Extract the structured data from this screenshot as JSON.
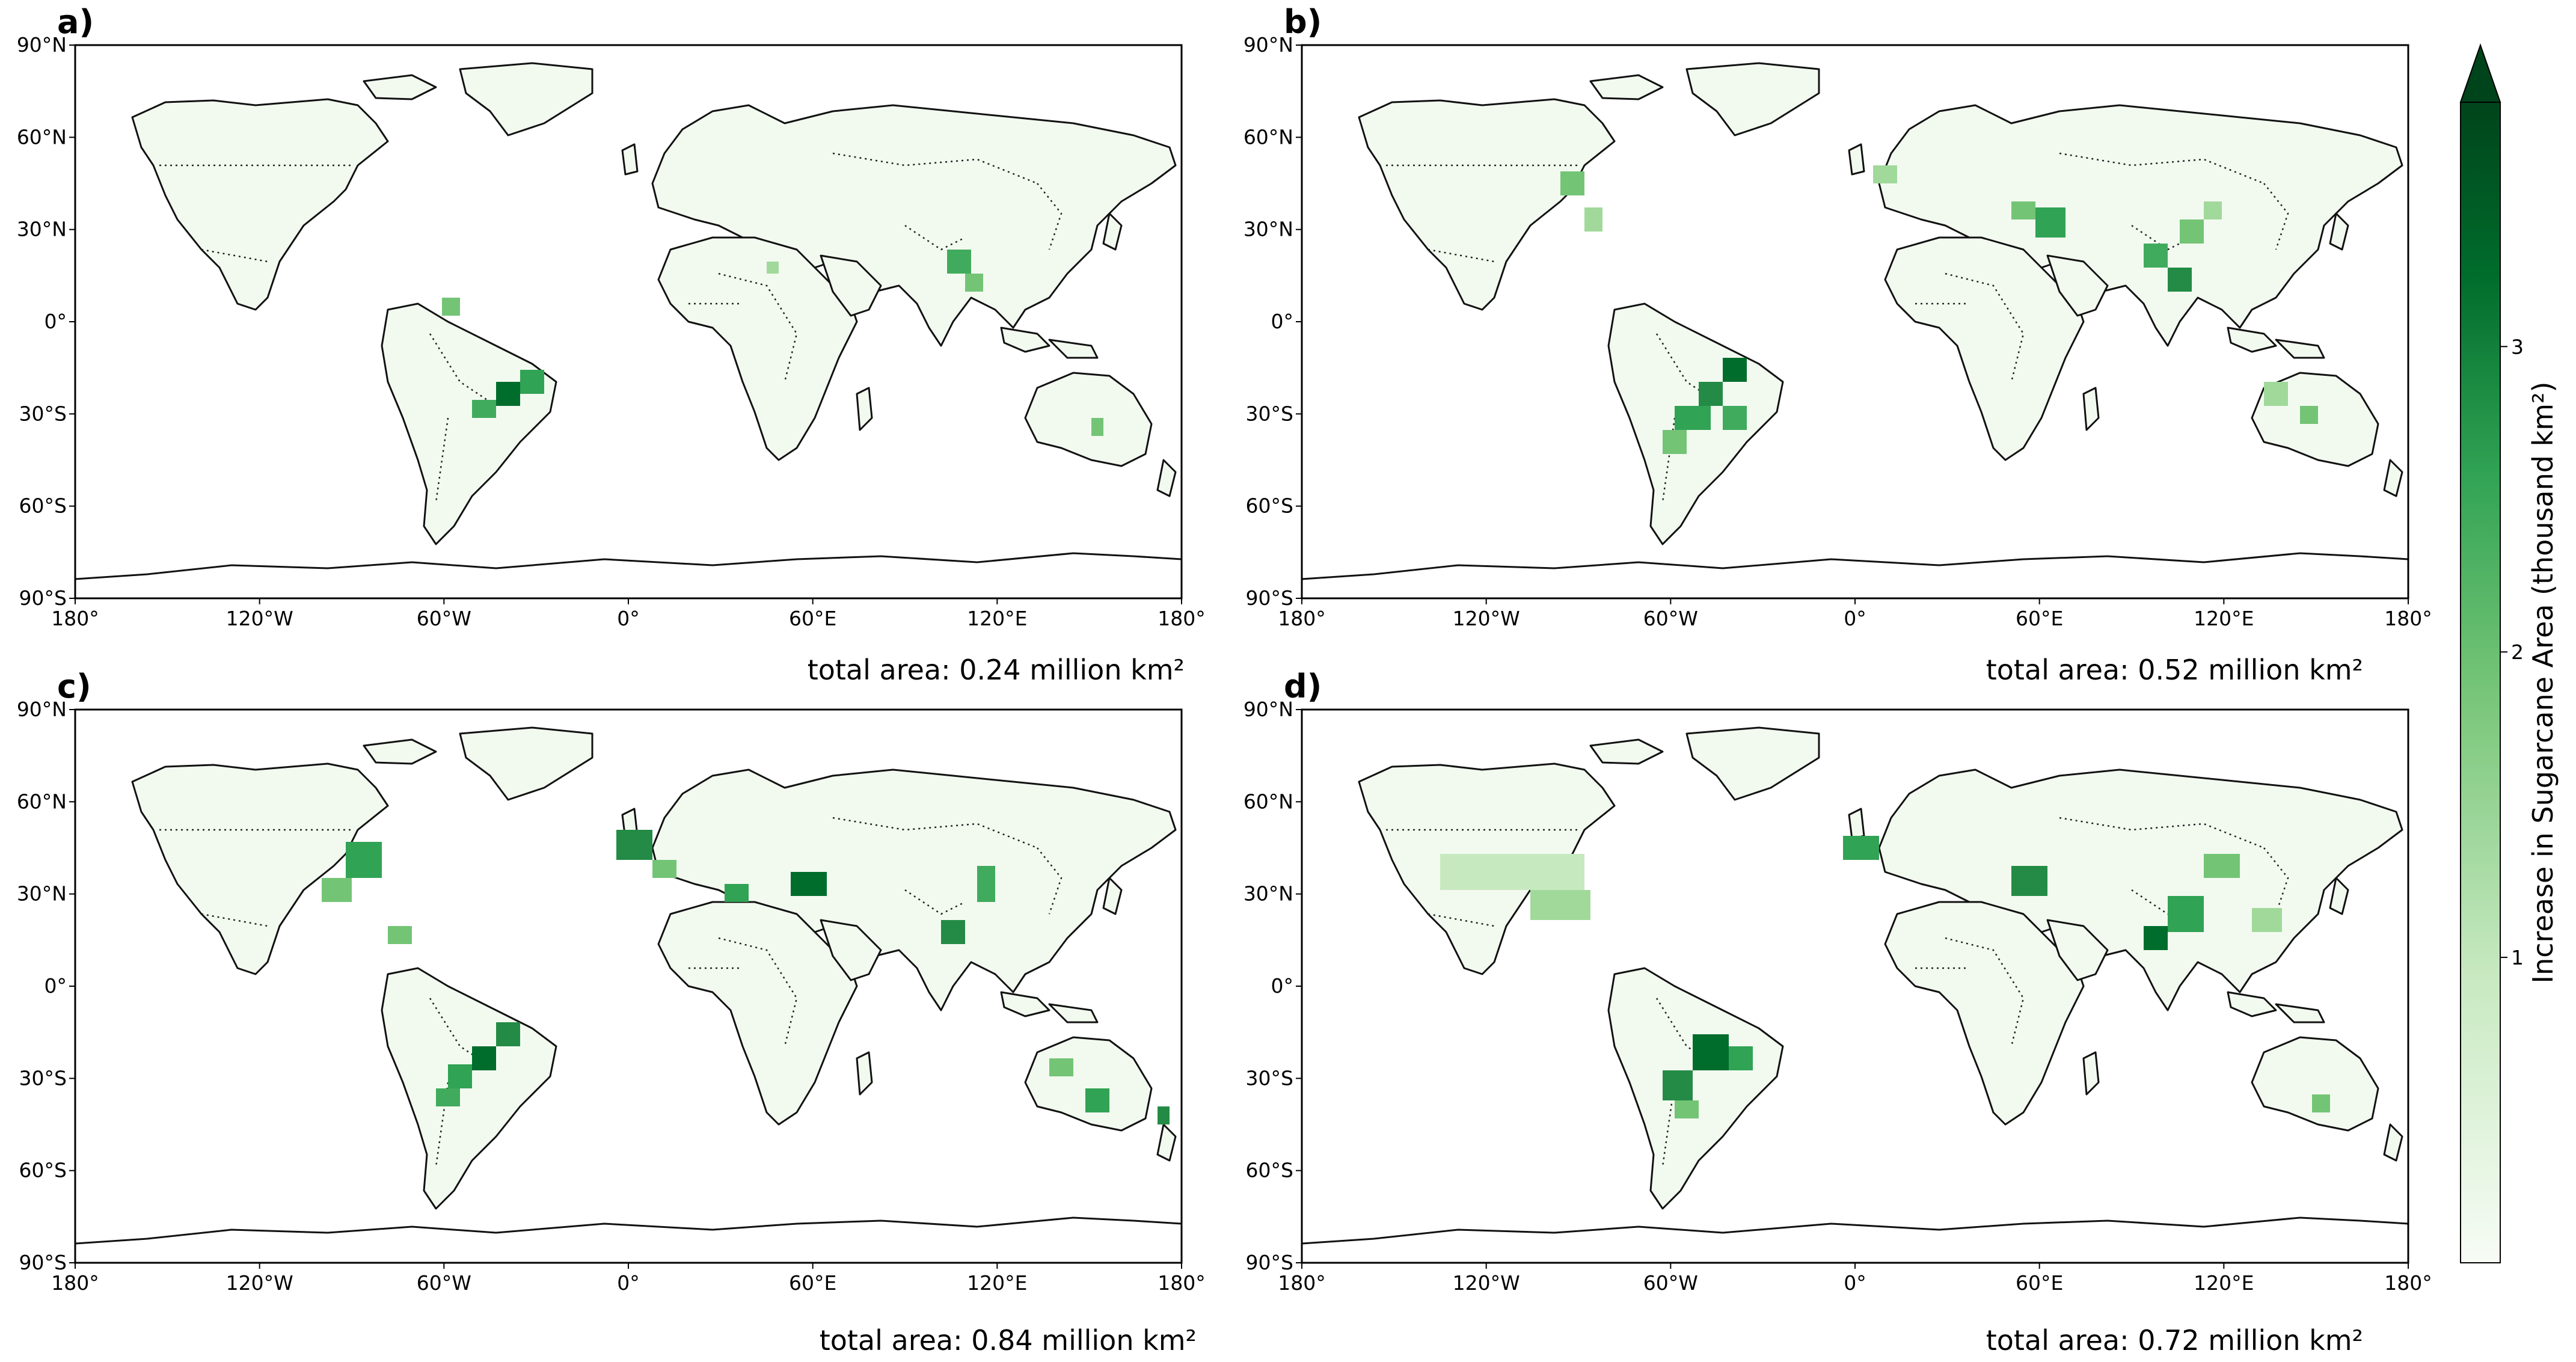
{
  "panels": [
    {
      "letter": "a)",
      "total_area": "total area: 0.24 million km²"
    },
    {
      "letter": "b)",
      "total_area": "total area: 0.52 million km²"
    },
    {
      "letter": "c)",
      "total_area": "total area: 0.84 million km²"
    },
    {
      "letter": "d)",
      "total_area": "total area: 0.72 million km²"
    }
  ],
  "axes": {
    "lat_ticks": [
      "90°N",
      "60°N",
      "30°N",
      "0°",
      "30°S",
      "60°S",
      "90°S"
    ],
    "lon_ticks": [
      "180°",
      "120°W",
      "60°W",
      "0°",
      "60°E",
      "120°E",
      "180°"
    ]
  },
  "colorbar": {
    "label": "Increase in Sugarcane Area (thousand km²)",
    "ticks": [
      "1",
      "2",
      "3"
    ],
    "tick_values": [
      1,
      2,
      3
    ],
    "range": [
      0,
      3.8
    ],
    "extend": "max",
    "colormap": [
      "#f7fcf5",
      "#c7e9c0",
      "#74c476",
      "#31a354",
      "#006d2c",
      "#00441b"
    ]
  },
  "colors": {
    "land": "#f2faf0",
    "low": "#c7e9c0",
    "mid": "#74c476",
    "high": "#238b45",
    "peak": "#00441b"
  }
}
